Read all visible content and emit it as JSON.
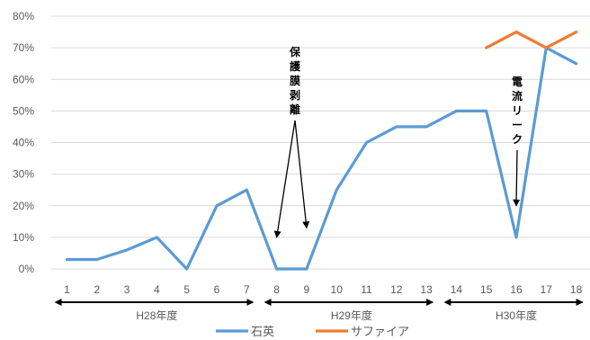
{
  "chart_data": {
    "type": "line",
    "categories": [
      "1",
      "2",
      "3",
      "4",
      "5",
      "6",
      "7",
      "8",
      "9",
      "10",
      "11",
      "12",
      "13",
      "14",
      "15",
      "16",
      "17",
      "18"
    ],
    "y_ticks": [
      "0%",
      "10%",
      "20%",
      "30%",
      "40%",
      "50%",
      "60%",
      "70%",
      "80%"
    ],
    "ylim": [
      0,
      80
    ],
    "grid": true,
    "legend_position": "bottom",
    "series": [
      {
        "name": "石英",
        "color": "#5B9BD5",
        "values": [
          3,
          3,
          6,
          10,
          0,
          20,
          25,
          0,
          0,
          25,
          40,
          45,
          45,
          50,
          50,
          10,
          70,
          65
        ]
      },
      {
        "name": "サファイア",
        "color": "#ED7D31",
        "values": [
          null,
          null,
          null,
          null,
          null,
          null,
          null,
          null,
          null,
          null,
          null,
          null,
          null,
          null,
          70,
          75,
          70,
          75
        ]
      }
    ],
    "periods": [
      {
        "label": "H28年度",
        "from": 1,
        "to": 7
      },
      {
        "label": "H29年度",
        "from": 8,
        "to": 13
      },
      {
        "label": "H30年度",
        "from": 14,
        "to": 18
      }
    ],
    "annotations": [
      {
        "text": "保護膜剥離",
        "targets": [
          {
            "x": 8,
            "y": 10
          },
          {
            "x": 9,
            "y": 13
          }
        ]
      },
      {
        "text": "電流リーク",
        "targets": [
          {
            "x": 16,
            "y": 20
          }
        ]
      }
    ]
  }
}
